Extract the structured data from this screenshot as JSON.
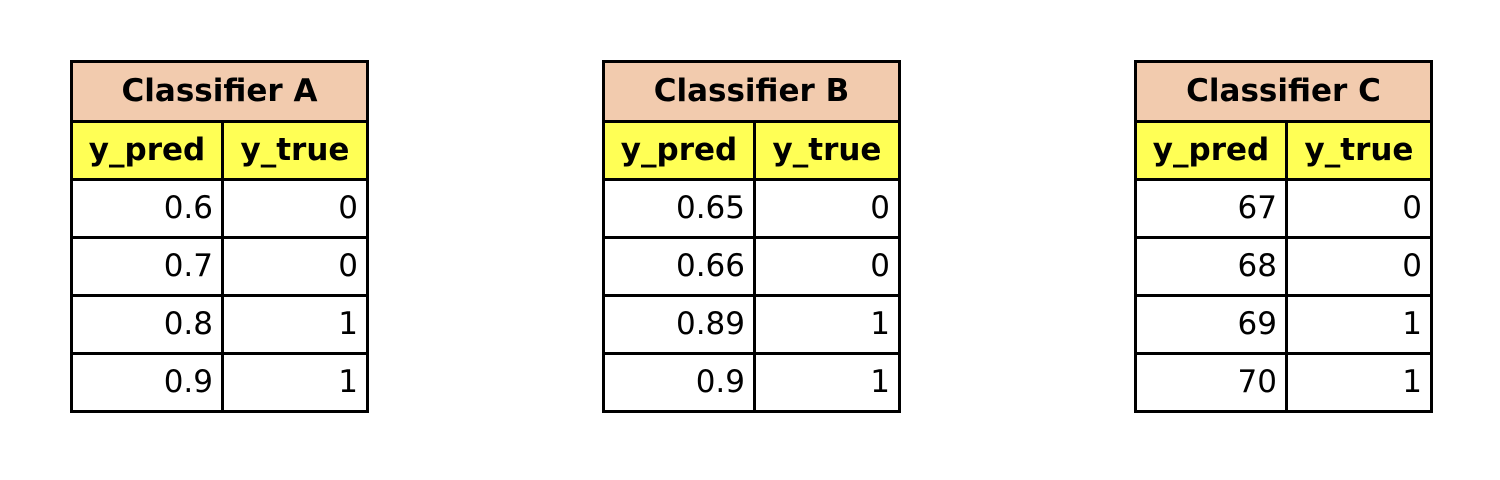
{
  "tables": [
    {
      "title": "Classifier A",
      "headers": [
        "y_pred",
        "y_true"
      ],
      "rows": [
        [
          "0.6",
          "0"
        ],
        [
          "0.7",
          "0"
        ],
        [
          "0.8",
          "1"
        ],
        [
          "0.9",
          "1"
        ]
      ]
    },
    {
      "title": "Classifier B",
      "headers": [
        "y_pred",
        "y_true"
      ],
      "rows": [
        [
          "0.65",
          "0"
        ],
        [
          "0.66",
          "0"
        ],
        [
          "0.89",
          "1"
        ],
        [
          "0.9",
          "1"
        ]
      ]
    },
    {
      "title": "Classifier C",
      "headers": [
        "y_pred",
        "y_true"
      ],
      "rows": [
        [
          "67",
          "0"
        ],
        [
          "68",
          "0"
        ],
        [
          "69",
          "1"
        ],
        [
          "70",
          "1"
        ]
      ]
    }
  ],
  "colors": {
    "title_fill": "#F2CBAE",
    "header_fill": "#FFFF55",
    "border": "#000000"
  }
}
